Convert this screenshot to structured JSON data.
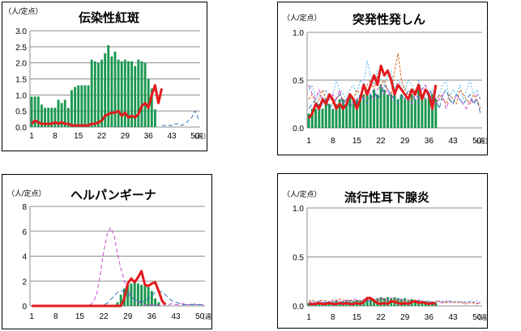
{
  "chart_data": [
    {
      "type": "bar",
      "title": "伝染性紅斑",
      "ylabel": "（人/定点）",
      "xlabel": "（週）",
      "ylim": [
        0,
        3.0
      ],
      "yticks": [
        "0.0",
        "0.5",
        "1.0",
        "1.5",
        "2.0",
        "2.5",
        "3.0"
      ],
      "xticks": [
        "1",
        "8",
        "15",
        "22",
        "29",
        "36",
        "43",
        "50"
      ],
      "series": [
        {
          "kind": "bar",
          "color": "#1a9850",
          "values": [
            0.95,
            0.95,
            0.95,
            0.7,
            0.6,
            0.6,
            0.6,
            0.6,
            0.85,
            0.75,
            0.85,
            0.6,
            1.15,
            1.25,
            1.3,
            1.3,
            1.3,
            1.3,
            2.1,
            2.05,
            2.0,
            2.1,
            2.3,
            2.55,
            2.2,
            2.35,
            2.1,
            2.05,
            2.1,
            2.05,
            2.05,
            1.9,
            2.1,
            2.05,
            2.0,
            1.5,
            1.2,
            0.55
          ]
        },
        {
          "kind": "line",
          "color": "#e31a1c",
          "width": 3,
          "values": [
            0.1,
            0.2,
            0.15,
            0.1,
            0.1,
            0.1,
            0.1,
            0.15,
            0.1,
            0.15,
            0.1,
            0.1,
            0.05,
            0.05,
            0.05,
            0.05,
            0.05,
            0.05,
            0.1,
            0.1,
            0.15,
            0.2,
            0.35,
            0.4,
            0.45,
            0.45,
            0.5,
            0.35,
            0.45,
            0.3,
            0.35,
            0.3,
            0.4,
            0.65,
            0.75,
            0.6,
            1.0,
            1.3,
            0.75,
            1.2
          ]
        },
        {
          "kind": "line",
          "color": "#2e75b6",
          "dash": "5,3",
          "width": 1,
          "values": [
            null,
            null,
            null,
            null,
            null,
            null,
            null,
            null,
            null,
            null,
            null,
            null,
            null,
            null,
            null,
            null,
            null,
            null,
            null,
            null,
            null,
            null,
            null,
            null,
            null,
            null,
            null,
            null,
            null,
            null,
            null,
            null,
            null,
            null,
            null,
            null,
            null,
            null,
            null,
            0.05,
            0.05,
            0.05,
            0.05,
            0.1,
            0.1,
            0.05,
            0.1,
            0.2,
            0.3,
            0.5,
            0.25
          ]
        }
      ]
    },
    {
      "type": "bar",
      "title": "突発性発しん",
      "ylabel": "（人/定点）",
      "xlabel": "（週）",
      "ylim": [
        0,
        1.0
      ],
      "yticks": [
        "0.0",
        "0.5",
        "1.0"
      ],
      "xticks": [
        "1",
        "8",
        "15",
        "22",
        "29",
        "36",
        "43",
        "50"
      ],
      "series": [
        {
          "kind": "bar",
          "color": "#1a9850",
          "values": [
            0.15,
            0.2,
            0.2,
            0.25,
            0.2,
            0.3,
            0.25,
            0.2,
            0.25,
            0.3,
            0.3,
            0.25,
            0.35,
            0.3,
            0.3,
            0.3,
            0.35,
            0.4,
            0.35,
            0.4,
            0.35,
            0.45,
            0.4,
            0.35,
            0.35,
            0.4,
            0.3,
            0.35,
            0.3,
            0.3,
            0.35,
            0.3,
            0.4,
            0.35,
            0.3,
            0.35,
            0.35,
            0.3
          ]
        },
        {
          "kind": "line",
          "color": "#e31a1c",
          "width": 3,
          "values": [
            0.1,
            0.15,
            0.25,
            0.2,
            0.3,
            0.25,
            0.35,
            0.3,
            0.2,
            0.25,
            0.2,
            0.25,
            0.35,
            0.3,
            0.2,
            0.3,
            0.45,
            0.35,
            0.45,
            0.55,
            0.45,
            0.65,
            0.55,
            0.6,
            0.5,
            0.35,
            0.45,
            0.4,
            0.35,
            0.3,
            0.4,
            0.35,
            0.45,
            0.3,
            0.4,
            0.35,
            0.2,
            0.45
          ]
        },
        {
          "kind": "line",
          "color": "#56b4e9",
          "dash": "2,2",
          "width": 1,
          "values": [
            0.4,
            0.45,
            0.3,
            0.35,
            0.25,
            0.4,
            0.3,
            0.35,
            0.5,
            0.4,
            0.35,
            0.3,
            0.4,
            0.45,
            0.35,
            0.5,
            0.45,
            0.7,
            0.55,
            0.45,
            0.6,
            0.5,
            0.45,
            0.55,
            0.6,
            0.4,
            0.5,
            0.45,
            0.4,
            0.5,
            0.45,
            0.35,
            0.5,
            0.4,
            0.45,
            0.35,
            0.4,
            0.3,
            0.35,
            0.45,
            0.5,
            0.3,
            0.4,
            0.35,
            0.45,
            0.3,
            0.4,
            0.5,
            0.35,
            0.4,
            0.3
          ]
        },
        {
          "kind": "line",
          "color": "#d95f0e",
          "dash": "3,2",
          "width": 1,
          "values": [
            0.3,
            0.35,
            0.25,
            0.3,
            0.4,
            0.3,
            0.35,
            0.25,
            0.3,
            0.35,
            0.3,
            0.25,
            0.35,
            0.3,
            0.4,
            0.35,
            0.3,
            0.45,
            0.5,
            0.4,
            0.55,
            0.45,
            0.5,
            0.4,
            0.35,
            0.6,
            0.78,
            0.5,
            0.4,
            0.35,
            0.3,
            0.4,
            0.35,
            0.3,
            0.4,
            0.35,
            0.3,
            0.25,
            0.35,
            0.3,
            0.25,
            0.35,
            0.3,
            0.25,
            0.4,
            0.35,
            0.3,
            0.25,
            0.35,
            0.3,
            0.2
          ]
        },
        {
          "kind": "line",
          "color": "#cc4bd6",
          "dash": "5,3",
          "width": 1,
          "values": [
            0.45,
            0.35,
            0.3,
            0.4,
            0.3,
            0.25,
            0.3,
            0.35,
            0.3,
            0.4,
            0.25,
            0.3,
            0.35,
            0.25,
            0.3,
            0.35,
            0.3,
            0.4,
            0.35,
            0.3,
            0.4,
            0.45,
            0.35,
            0.4,
            0.3,
            0.35,
            0.45,
            0.4,
            0.35,
            0.3,
            0.25,
            0.35,
            0.3,
            0.4,
            0.45,
            0.35,
            0.3,
            0.25,
            0.3,
            0.35,
            0.2,
            0.3,
            0.25,
            0.35,
            0.3,
            0.25,
            0.2,
            0.3,
            0.25,
            0.35,
            0.3
          ]
        },
        {
          "kind": "line",
          "color": "#2e75b6",
          "dash": "6,3",
          "width": 1,
          "values": [
            0.2,
            0.25,
            0.3,
            0.2,
            0.25,
            0.3,
            0.2,
            0.25,
            0.3,
            0.35,
            0.25,
            0.3,
            0.2,
            0.3,
            0.25,
            0.35,
            0.3,
            0.25,
            0.35,
            0.4,
            0.3,
            0.35,
            0.45,
            0.4,
            0.35,
            0.3,
            0.25,
            0.35,
            0.3,
            0.4,
            0.35,
            0.3,
            0.25,
            0.35,
            0.3,
            0.4,
            0.35,
            0.3,
            0.2,
            0.35,
            0.4,
            0.3,
            0.25,
            0.35,
            0.3,
            0.25,
            0.3,
            0.35,
            0.25,
            0.3,
            0.15
          ]
        }
      ]
    },
    {
      "type": "bar",
      "title": "ヘルパンギーナ",
      "ylabel": "（人/定点）",
      "xlabel": "（週）",
      "ylim": [
        0,
        8
      ],
      "yticks": [
        "0",
        "2",
        "4",
        "6",
        "8"
      ],
      "xticks": [
        "1",
        "8",
        "15",
        "22",
        "29",
        "36",
        "43",
        "50"
      ],
      "series": [
        {
          "kind": "bar",
          "color": "#1a9850",
          "values": [
            0,
            0,
            0,
            0,
            0,
            0,
            0,
            0,
            0,
            0,
            0,
            0,
            0,
            0,
            0,
            0,
            0,
            0,
            0,
            0,
            0,
            0,
            0,
            0,
            0.1,
            0.3,
            0.9,
            1.4,
            1.7,
            1.8,
            1.9,
            1.8,
            1.7,
            1.6,
            1.5,
            1.2,
            0.6,
            0.3
          ]
        },
        {
          "kind": "line",
          "color": "#e31a1c",
          "width": 3,
          "values": [
            0,
            0,
            0,
            0,
            0,
            0,
            0,
            0,
            0,
            0,
            0,
            0,
            0,
            0,
            0,
            0,
            0,
            0,
            0,
            0,
            0,
            0,
            0,
            0,
            0,
            0,
            0,
            0.6,
            1.8,
            2.2,
            1.9,
            2.3,
            2.8,
            1.7,
            1.6,
            1.8,
            1.9,
            1.2,
            0.4,
            0.1
          ]
        },
        {
          "kind": "line",
          "color": "#cc4bd6",
          "dash": "5,3",
          "width": 1,
          "values": [
            0,
            0,
            0,
            0,
            0,
            0,
            0,
            0,
            0,
            0,
            0,
            0,
            0,
            0,
            0,
            0,
            0,
            0.1,
            0.3,
            1.0,
            2.6,
            4.4,
            5.8,
            6.3,
            5.7,
            4.2,
            3.0,
            2.0,
            1.3,
            0.8,
            0.5,
            0.3,
            0.2,
            0.1,
            0.1,
            0.1,
            0.1,
            0.1,
            0.1,
            0.2,
            0.1,
            0.2,
            0.1,
            0.1,
            0.2,
            0.1,
            0.1,
            0.2,
            0.1,
            0.1,
            0.1
          ]
        },
        {
          "kind": "line",
          "color": "#2e75b6",
          "dash": "6,3",
          "width": 1,
          "values": [
            0,
            0,
            0,
            0,
            0,
            0,
            0,
            0,
            0,
            0,
            0,
            0,
            0,
            0,
            0,
            0,
            0,
            0,
            0,
            0,
            0,
            0.1,
            0.2,
            0.5,
            0.8,
            1.1,
            1.2,
            1.2,
            1.0,
            0.7,
            0.5,
            0.4,
            0.3,
            0.4,
            0.6,
            0.8,
            1.1,
            1.2,
            1.1,
            0.9,
            0.6,
            0.4,
            0.3,
            0.2,
            0.1,
            0.1,
            0.1,
            0.1,
            0.1,
            0.1,
            0.1
          ]
        }
      ]
    },
    {
      "type": "bar",
      "title": "流行性耳下腺炎",
      "ylabel": "（人/定点）",
      "xlabel": "（週）",
      "ylim": [
        0,
        1.0
      ],
      "yticks": [
        "0.0",
        "0.5",
        "1.0"
      ],
      "xticks": [
        "1",
        "8",
        "15",
        "22",
        "29",
        "36",
        "43",
        "50"
      ],
      "series": [
        {
          "kind": "bar",
          "color": "#1a9850",
          "values": [
            0.03,
            0.03,
            0.03,
            0.03,
            0.03,
            0.04,
            0.03,
            0.04,
            0.05,
            0.04,
            0.05,
            0.05,
            0.06,
            0.05,
            0.06,
            0.05,
            0.06,
            0.07,
            0.08,
            0.07,
            0.08,
            0.09,
            0.08,
            0.09,
            0.08,
            0.09,
            0.08,
            0.07,
            0.08,
            0.06,
            0.07,
            0.05,
            0.06,
            0.05,
            0.05,
            0.04,
            0.04,
            0.03
          ]
        },
        {
          "kind": "line",
          "color": "#e31a1c",
          "width": 3,
          "values": [
            0.02,
            0.02,
            0.02,
            0.03,
            0.02,
            0.02,
            0.03,
            0.02,
            0.02,
            0.03,
            0.02,
            0.03,
            0.02,
            0.02,
            0.03,
            0.02,
            0.04,
            0.08,
            0.08,
            0.05,
            0.03,
            0.02,
            0.03,
            0.02,
            0.05,
            0.04,
            0.03,
            0.02,
            0.03,
            0.02,
            0.04,
            0.05,
            0.03,
            0.04,
            0.03,
            0.02,
            0.03,
            0.02
          ]
        },
        {
          "kind": "line",
          "color": "#cc4bd6",
          "dash": "4,2",
          "width": 1,
          "values": [
            0.03,
            0.04,
            0.03,
            0.05,
            0.04,
            0.03,
            0.05,
            0.04,
            0.06,
            0.05,
            0.04,
            0.06,
            0.05,
            0.07,
            0.06,
            0.05,
            0.07,
            0.06,
            0.05,
            0.07,
            0.06,
            0.08,
            0.07,
            0.06,
            0.08,
            0.07,
            0.06,
            0.07,
            0.05,
            0.06,
            0.05,
            0.04,
            0.06,
            0.05,
            0.04,
            0.05,
            0.04,
            0.05,
            0.04,
            0.03,
            0.05,
            0.04,
            0.03,
            0.05,
            0.04,
            0.03,
            0.04,
            0.03,
            0.04,
            0.03,
            0.03
          ]
        },
        {
          "kind": "line",
          "color": "#d95f0e",
          "dash": "3,2",
          "width": 1,
          "values": [
            0.05,
            0.06,
            0.04,
            0.05,
            0.06,
            0.05,
            0.04,
            0.06,
            0.05,
            0.07,
            0.06,
            0.05,
            0.06,
            0.05,
            0.04,
            0.06,
            0.05,
            0.06,
            0.07,
            0.06,
            0.05,
            0.07,
            0.06,
            0.05,
            0.04,
            0.06,
            0.05,
            0.04,
            0.05,
            0.06,
            0.04,
            0.05,
            0.04,
            0.03,
            0.05,
            0.04,
            0.03,
            0.04,
            0.05,
            0.04,
            0.03,
            0.05,
            0.04,
            0.03,
            0.04,
            0.03,
            0.02,
            0.04,
            0.03,
            0.02,
            0.03
          ]
        },
        {
          "kind": "line",
          "color": "#56b4e9",
          "dash": "2,2",
          "width": 1,
          "values": [
            0.04,
            0.05,
            0.04,
            0.05,
            0.04,
            0.05,
            0.04,
            0.05,
            0.04,
            0.05,
            0.04,
            0.05,
            0.04,
            0.05,
            0.04,
            0.05,
            0.04,
            0.05,
            0.04,
            0.05,
            0.04,
            0.05,
            0.04,
            0.05,
            0.04,
            0.05,
            0.04,
            0.05,
            0.04,
            0.05,
            0.04,
            0.05,
            0.04,
            0.05,
            0.04,
            0.05,
            0.04,
            0.05,
            0.04,
            0.05,
            0.04,
            0.05,
            0.04,
            0.05,
            0.04,
            0.05,
            0.04,
            0.05,
            0.04,
            0.05,
            0.04
          ]
        }
      ]
    }
  ]
}
